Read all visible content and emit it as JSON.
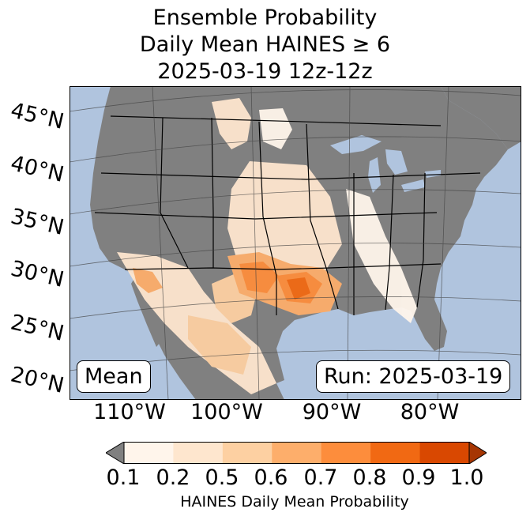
{
  "title": {
    "line1": "Ensemble Probability",
    "line2": "Daily Mean HAINES ≥ 6",
    "line3": "2025-03-19 12z-12z"
  },
  "map": {
    "lat_labels": [
      "45°N",
      "40°N",
      "35°N",
      "30°N",
      "25°N",
      "20°N"
    ],
    "lon_labels": [
      "110°W",
      "100°W",
      "90°W",
      "80°W"
    ],
    "mean_label": "Mean",
    "run_label": "Run: 2025-03-19",
    "colors": {
      "ocean": "#b0c4de",
      "land_below_threshold": "#808080",
      "border": "#000000",
      "graticule": "#404040"
    }
  },
  "colorbar": {
    "ticks": [
      "0.1",
      "0.2",
      "0.5",
      "0.6",
      "0.7",
      "0.8",
      "0.9",
      "1.0"
    ],
    "bins": [
      {
        "range": "0.1-0.2",
        "color": "#fff5eb"
      },
      {
        "range": "0.2-0.5",
        "color": "#fee6ce"
      },
      {
        "range": "0.5-0.6",
        "color": "#fdd0a2"
      },
      {
        "range": "0.6-0.7",
        "color": "#fdae6b"
      },
      {
        "range": "0.7-0.8",
        "color": "#fd8d3c"
      },
      {
        "range": "0.8-0.9",
        "color": "#f16913"
      },
      {
        "range": "0.9-1.0",
        "color": "#d94801"
      }
    ],
    "under_color": "#808080",
    "over_color": "#a63603",
    "label": "HAINES Daily Mean Probability"
  }
}
